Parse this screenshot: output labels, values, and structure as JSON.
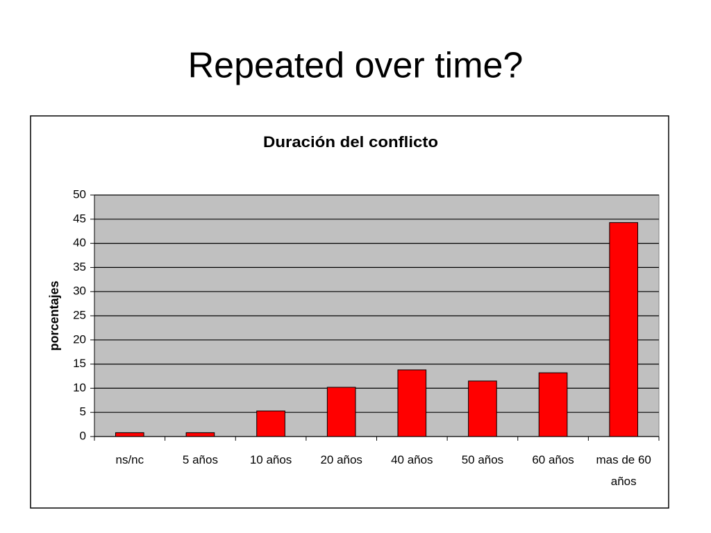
{
  "heading": "Repeated over time?",
  "chart_data": {
    "type": "bar",
    "title": "Duración del conflicto",
    "y_label": "porcentajes",
    "categories": [
      "ns/nc",
      "5 años",
      "10 años",
      "20 años",
      "40 años",
      "50 años",
      "60 años",
      "mas de 60 años"
    ],
    "values": [
      0.8,
      0.8,
      5.3,
      10.2,
      13.8,
      11.5,
      13.2,
      44.3
    ],
    "color": "#ff0000",
    "ylim": [
      0,
      50
    ],
    "yticks": [
      0,
      5,
      10,
      15,
      20,
      25,
      30,
      35,
      40,
      45,
      50
    ],
    "grid": true
  }
}
